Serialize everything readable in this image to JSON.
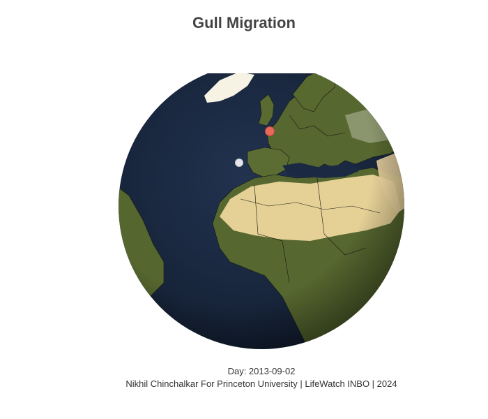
{
  "header": {
    "title": "Gull Migration"
  },
  "map": {
    "projection": "orthographic",
    "center_region": "North Africa / Western Europe",
    "colors": {
      "ocean": "#1c2b44",
      "land": "#5a6b35",
      "desert": "#f3dca2",
      "borders": "#111111",
      "ice": "#f6f2e4"
    },
    "markers": [
      {
        "name": "gull-marker-red",
        "color": "#e8685a",
        "place": "northern France"
      },
      {
        "name": "gull-marker-white",
        "color": "#e6e6ea",
        "place": "Bay of Biscay"
      }
    ]
  },
  "footer": {
    "day_text": "Day: 2013-09-02",
    "credit": "Nikhil Chinchalkar For Princeton University | LifeWatch INBO | 2024"
  }
}
